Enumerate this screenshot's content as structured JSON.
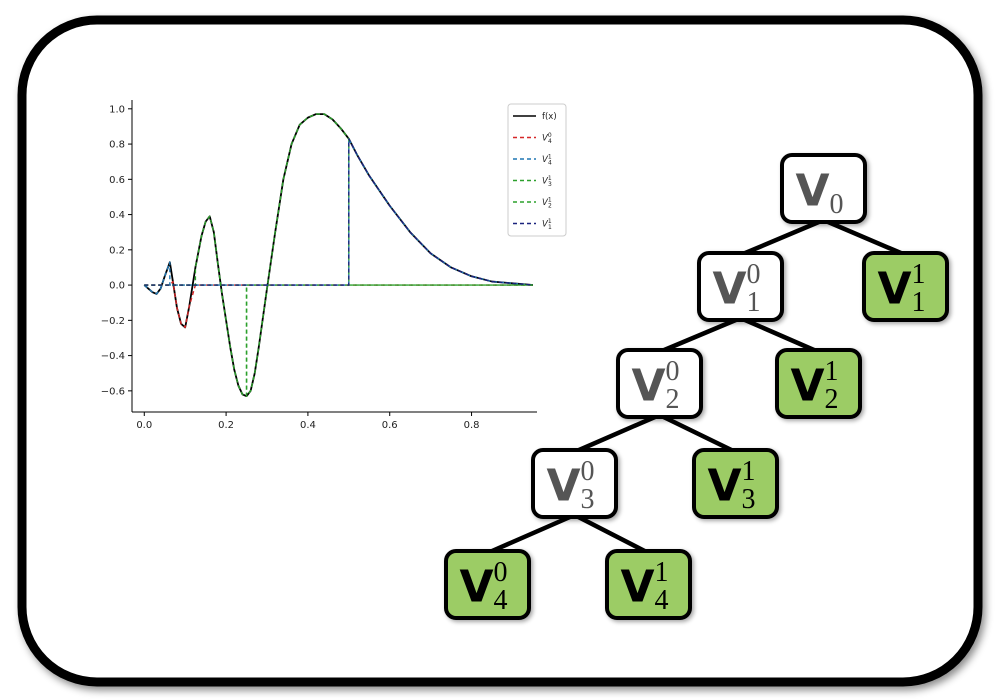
{
  "chart_data": {
    "type": "line",
    "xlim": [
      -0.03,
      0.96
    ],
    "ylim": [
      -0.72,
      1.05
    ],
    "xticks": [
      "0.0",
      "0.2",
      "0.4",
      "0.6",
      "0.8"
    ],
    "xtick_values": [
      0.0,
      0.2,
      0.4,
      0.6,
      0.8
    ],
    "yticks": [
      "−0.6",
      "−0.4",
      "−0.2",
      "0.0",
      "0.2",
      "0.4",
      "0.6",
      "0.8",
      "1.0"
    ],
    "ytick_values": [
      -0.6,
      -0.4,
      -0.2,
      0.0,
      0.2,
      0.4,
      0.6,
      0.8,
      1.0
    ],
    "grid": false,
    "legend_position": "top-right",
    "legend": [
      {
        "label": "f(x)",
        "sym": "",
        "sub": "",
        "sup": "",
        "color": "#000000",
        "dashed": false
      },
      {
        "label": "",
        "sym": "V",
        "sub": "4",
        "sup": "0",
        "color": "#d62728",
        "dashed": true
      },
      {
        "label": "",
        "sym": "V",
        "sub": "4",
        "sup": "1",
        "color": "#1f77b4",
        "dashed": true
      },
      {
        "label": "",
        "sym": "V",
        "sub": "3",
        "sup": "1",
        "color": "#2ca02c",
        "dashed": true
      },
      {
        "label": "",
        "sym": "V",
        "sub": "2",
        "sup": "1",
        "color": "#2ca02c",
        "dashed": true
      },
      {
        "label": "",
        "sym": "V",
        "sub": "1",
        "sup": "1",
        "color": "#1a237e",
        "dashed": true
      }
    ],
    "series": [
      {
        "name": "f(x)",
        "color": "#000000",
        "dashed": false,
        "x": [
          0.0,
          0.02,
          0.03,
          0.04,
          0.05,
          0.0625,
          0.07,
          0.08,
          0.09,
          0.1,
          0.11,
          0.125,
          0.14,
          0.15,
          0.16,
          0.17,
          0.18,
          0.19,
          0.2,
          0.21,
          0.22,
          0.23,
          0.24,
          0.25,
          0.26,
          0.27,
          0.28,
          0.3,
          0.32,
          0.34,
          0.36,
          0.38,
          0.4,
          0.42,
          0.44,
          0.46,
          0.48,
          0.5,
          0.52,
          0.55,
          0.6,
          0.65,
          0.7,
          0.75,
          0.8,
          0.85,
          0.9,
          0.95
        ],
        "y": [
          0.0,
          -0.04,
          -0.05,
          -0.02,
          0.05,
          0.13,
          0.02,
          -0.13,
          -0.22,
          -0.24,
          -0.12,
          0.1,
          0.28,
          0.36,
          0.39,
          0.3,
          0.12,
          -0.05,
          -0.2,
          -0.35,
          -0.48,
          -0.57,
          -0.62,
          -0.63,
          -0.6,
          -0.5,
          -0.35,
          -0.02,
          0.3,
          0.6,
          0.8,
          0.91,
          0.95,
          0.97,
          0.97,
          0.94,
          0.89,
          0.83,
          0.74,
          0.62,
          0.45,
          0.3,
          0.18,
          0.1,
          0.05,
          0.02,
          0.01,
          0.0
        ]
      },
      {
        "name": "V40",
        "color": "#d62728",
        "dashed": true,
        "x": [
          0.0,
          0.0625,
          0.07,
          0.08,
          0.09,
          0.1,
          0.11,
          0.125,
          0.95
        ],
        "y": [
          0.0,
          0.0,
          0.02,
          -0.13,
          -0.22,
          -0.24,
          -0.12,
          0.0,
          0.0
        ]
      },
      {
        "name": "V41",
        "color": "#1f77b4",
        "dashed": true,
        "x": [
          0.0,
          0.02,
          0.03,
          0.04,
          0.05,
          0.0625,
          0.0625,
          0.5,
          0.5,
          0.52,
          0.55,
          0.6,
          0.65,
          0.7,
          0.75,
          0.8,
          0.85,
          0.9,
          0.95
        ],
        "y": [
          0.0,
          -0.04,
          -0.05,
          -0.02,
          0.05,
          0.13,
          0.0,
          0.0,
          0.83,
          0.74,
          0.62,
          0.45,
          0.3,
          0.18,
          0.1,
          0.05,
          0.02,
          0.01,
          0.0
        ]
      },
      {
        "name": "V31",
        "color": "#2ca02c",
        "dashed": true,
        "x": [
          0.0,
          0.125,
          0.125,
          0.14,
          0.15,
          0.16,
          0.17,
          0.18,
          0.19,
          0.2,
          0.21,
          0.22,
          0.23,
          0.24,
          0.25,
          0.25,
          0.95
        ],
        "y": [
          0.0,
          0.0,
          0.1,
          0.28,
          0.36,
          0.39,
          0.3,
          0.12,
          -0.05,
          -0.2,
          -0.35,
          -0.48,
          -0.57,
          -0.62,
          -0.63,
          0.0,
          0.0
        ]
      },
      {
        "name": "V21",
        "color": "#2ca02c",
        "dashed": true,
        "x": [
          0.0,
          0.25,
          0.25,
          0.26,
          0.27,
          0.28,
          0.3,
          0.32,
          0.34,
          0.36,
          0.38,
          0.4,
          0.42,
          0.44,
          0.46,
          0.48,
          0.5,
          0.5,
          0.95
        ],
        "y": [
          0.0,
          0.0,
          -0.63,
          -0.6,
          -0.5,
          -0.35,
          -0.02,
          0.3,
          0.6,
          0.8,
          0.91,
          0.95,
          0.97,
          0.97,
          0.94,
          0.89,
          0.83,
          0.0,
          0.0
        ]
      },
      {
        "name": "V11",
        "color": "#1a237e",
        "dashed": true,
        "x": [
          0.0,
          0.5,
          0.5,
          0.52,
          0.55,
          0.6,
          0.65,
          0.7,
          0.75,
          0.8,
          0.85,
          0.9,
          0.95
        ],
        "y": [
          0.0,
          0.0,
          0.83,
          0.74,
          0.62,
          0.45,
          0.3,
          0.18,
          0.1,
          0.05,
          0.02,
          0.01,
          0.0
        ]
      }
    ]
  },
  "tree": {
    "nodes": [
      {
        "id": "V0",
        "sym": "V",
        "sup": "",
        "sub": "0",
        "leaf": false
      },
      {
        "id": "V10",
        "sym": "V",
        "sup": "0",
        "sub": "1",
        "leaf": false
      },
      {
        "id": "V11",
        "sym": "V",
        "sup": "1",
        "sub": "1",
        "leaf": true
      },
      {
        "id": "V20",
        "sym": "V",
        "sup": "0",
        "sub": "2",
        "leaf": false
      },
      {
        "id": "V21",
        "sym": "V",
        "sup": "1",
        "sub": "2",
        "leaf": true
      },
      {
        "id": "V30",
        "sym": "V",
        "sup": "0",
        "sub": "3",
        "leaf": false
      },
      {
        "id": "V31",
        "sym": "V",
        "sup": "1",
        "sub": "3",
        "leaf": true
      },
      {
        "id": "V40",
        "sym": "V",
        "sup": "0",
        "sub": "4",
        "leaf": true
      },
      {
        "id": "V41",
        "sym": "V",
        "sup": "1",
        "sub": "4",
        "leaf": true
      }
    ],
    "edges": [
      [
        "V0",
        "V10"
      ],
      [
        "V0",
        "V11"
      ],
      [
        "V10",
        "V20"
      ],
      [
        "V10",
        "V21"
      ],
      [
        "V20",
        "V30"
      ],
      [
        "V20",
        "V31"
      ],
      [
        "V30",
        "V40"
      ],
      [
        "V30",
        "V41"
      ]
    ],
    "colors": {
      "leaf_fill": "#9ccc65",
      "inner_fill": "#ffffff",
      "border": "#000000",
      "text": "#555555",
      "leaf_text": "#000000"
    }
  }
}
